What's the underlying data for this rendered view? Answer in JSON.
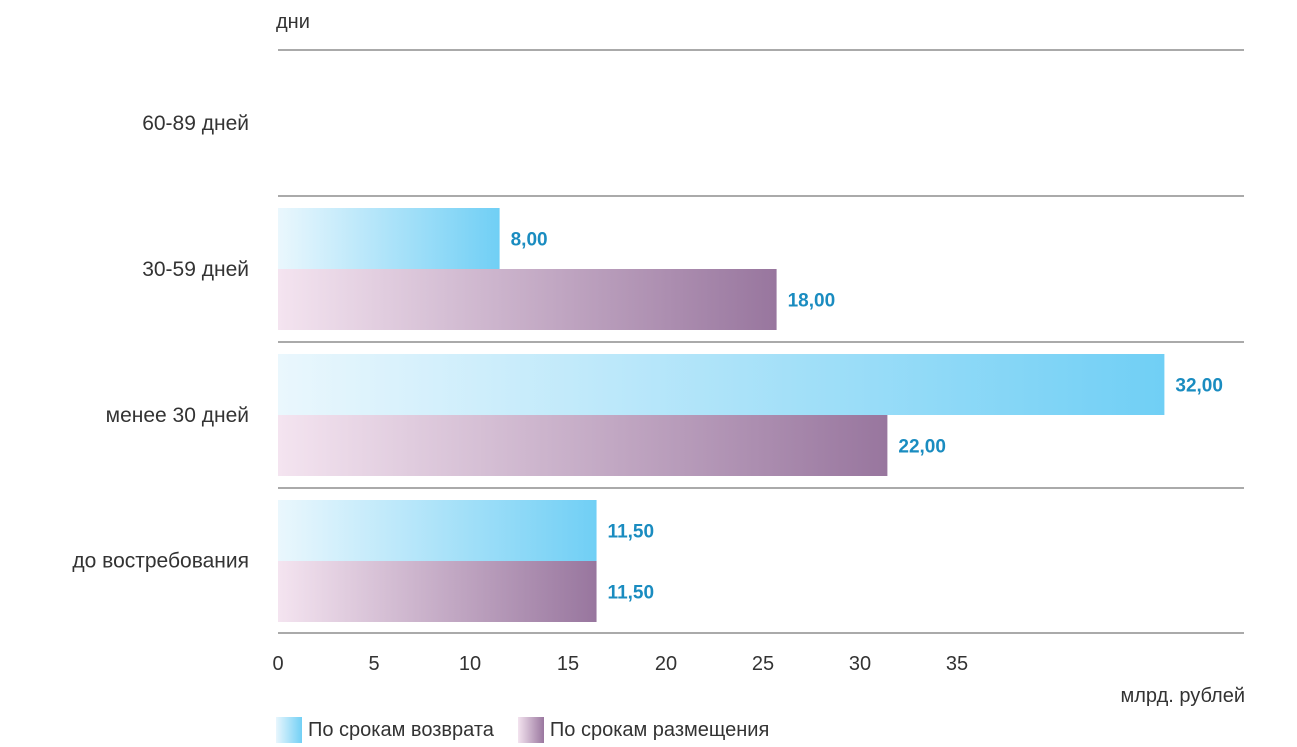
{
  "chart_data": {
    "type": "bar",
    "orientation": "horizontal",
    "ylabel": "дни",
    "xlabel": "млрд. рублей",
    "categories": [
      "60-89 дней",
      "30-59 дней",
      "менее 30 дней",
      "до востребования"
    ],
    "series": [
      {
        "name": "По срокам возврата",
        "values": [
          null,
          8.0,
          32.0,
          11.5
        ],
        "labels": [
          "",
          "8,00",
          "32,00",
          "11,50"
        ],
        "color": "#72d0f5"
      },
      {
        "name": "По срокам размещения",
        "values": [
          null,
          18.0,
          22.0,
          11.5
        ],
        "labels": [
          "",
          "18,00",
          "22,00",
          "11,50"
        ],
        "color": "#9a779f"
      }
    ],
    "x_ticks": [
      0,
      5,
      10,
      15,
      20,
      25,
      30,
      35
    ],
    "grid": "horizontal separators",
    "legend_position": "bottom-left"
  }
}
